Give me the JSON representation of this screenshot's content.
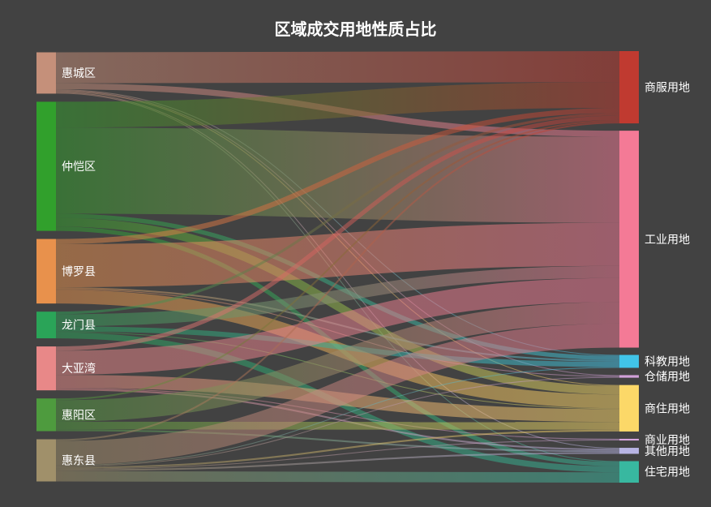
{
  "chart_data": {
    "type": "sankey",
    "title": "区域成交用地性质占比",
    "source_nodes": [
      {
        "name": "惠城区",
        "color": "#c5907a"
      },
      {
        "name": "仲恺区",
        "color": "#31a02c"
      },
      {
        "name": "博罗县",
        "color": "#e8914c"
      },
      {
        "name": "龙门县",
        "color": "#2aa458"
      },
      {
        "name": "大亚湾",
        "color": "#e88888"
      },
      {
        "name": "惠阳区",
        "color": "#4e9b3e"
      },
      {
        "name": "惠东县",
        "color": "#a0906a"
      }
    ],
    "target_nodes": [
      {
        "name": "商服用地",
        "color": "#c03a30"
      },
      {
        "name": "工业用地",
        "color": "#f47a96"
      },
      {
        "name": "科教用地",
        "color": "#41c4e8"
      },
      {
        "name": "仓储用地",
        "color": "#d0a0d8"
      },
      {
        "name": "商住用地",
        "color": "#fcd868"
      },
      {
        "name": "商业用地",
        "color": "#d4a4dc"
      },
      {
        "name": "其他用地",
        "color": "#b8b4e4"
      },
      {
        "name": "住宅用地",
        "color": "#38b8a0"
      }
    ],
    "links": [
      {
        "source": "惠城区",
        "target": "商服用地",
        "value": 36
      },
      {
        "source": "惠城区",
        "target": "工业用地",
        "value": 7
      },
      {
        "source": "惠城区",
        "target": "科教用地",
        "value": 1
      },
      {
        "source": "惠城区",
        "target": "仓储用地",
        "value": 1
      },
      {
        "source": "惠城区",
        "target": "商住用地",
        "value": 1
      },
      {
        "source": "惠城区",
        "target": "其他用地",
        "value": 1
      },
      {
        "source": "惠城区",
        "target": "住宅用地",
        "value": 1
      },
      {
        "source": "仲恺区",
        "target": "商服用地",
        "value": 30
      },
      {
        "source": "仲恺区",
        "target": "工业用地",
        "value": 100
      },
      {
        "source": "仲恺区",
        "target": "科教用地",
        "value": 5
      },
      {
        "source": "仲恺区",
        "target": "商住用地",
        "value": 10
      },
      {
        "source": "仲恺区",
        "target": "住宅用地",
        "value": 5
      },
      {
        "source": "博罗县",
        "target": "商服用地",
        "value": 6
      },
      {
        "source": "博罗县",
        "target": "工业用地",
        "value": 50
      },
      {
        "source": "博罗县",
        "target": "科教用地",
        "value": 2
      },
      {
        "source": "博罗县",
        "target": "仓储用地",
        "value": 1
      },
      {
        "source": "博罗县",
        "target": "商住用地",
        "value": 16
      },
      {
        "source": "龙门县",
        "target": "商服用地",
        "value": 3
      },
      {
        "source": "龙门县",
        "target": "工业用地",
        "value": 14
      },
      {
        "source": "龙门县",
        "target": "科教用地",
        "value": 6
      },
      {
        "source": "龙门县",
        "target": "商住用地",
        "value": 1
      },
      {
        "source": "龙门县",
        "target": "住宅用地",
        "value": 7
      },
      {
        "source": "大亚湾",
        "target": "商服用地",
        "value": 5
      },
      {
        "source": "大亚湾",
        "target": "工业用地",
        "value": 28
      },
      {
        "source": "大亚湾",
        "target": "商住用地",
        "value": 15
      },
      {
        "source": "大亚湾",
        "target": "商业用地",
        "value": 1
      },
      {
        "source": "大亚湾",
        "target": "其他用地",
        "value": 2
      },
      {
        "source": "惠阳区",
        "target": "商服用地",
        "value": 2
      },
      {
        "source": "惠阳区",
        "target": "工业用地",
        "value": 25
      },
      {
        "source": "惠阳区",
        "target": "商住用地",
        "value": 9
      },
      {
        "source": "惠阳区",
        "target": "其他用地",
        "value": 2
      },
      {
        "source": "惠东县",
        "target": "商服用地",
        "value": 2
      },
      {
        "source": "惠东县",
        "target": "工业用地",
        "value": 28
      },
      {
        "source": "惠东县",
        "target": "科教用地",
        "value": 1
      },
      {
        "source": "惠东县",
        "target": "仓储用地",
        "value": 1
      },
      {
        "source": "惠东县",
        "target": "商住用地",
        "value": 2
      },
      {
        "source": "惠东县",
        "target": "商业用地",
        "value": 1
      },
      {
        "source": "惠东县",
        "target": "其他用地",
        "value": 2
      },
      {
        "source": "惠东县",
        "target": "住宅用地",
        "value": 12
      }
    ]
  }
}
